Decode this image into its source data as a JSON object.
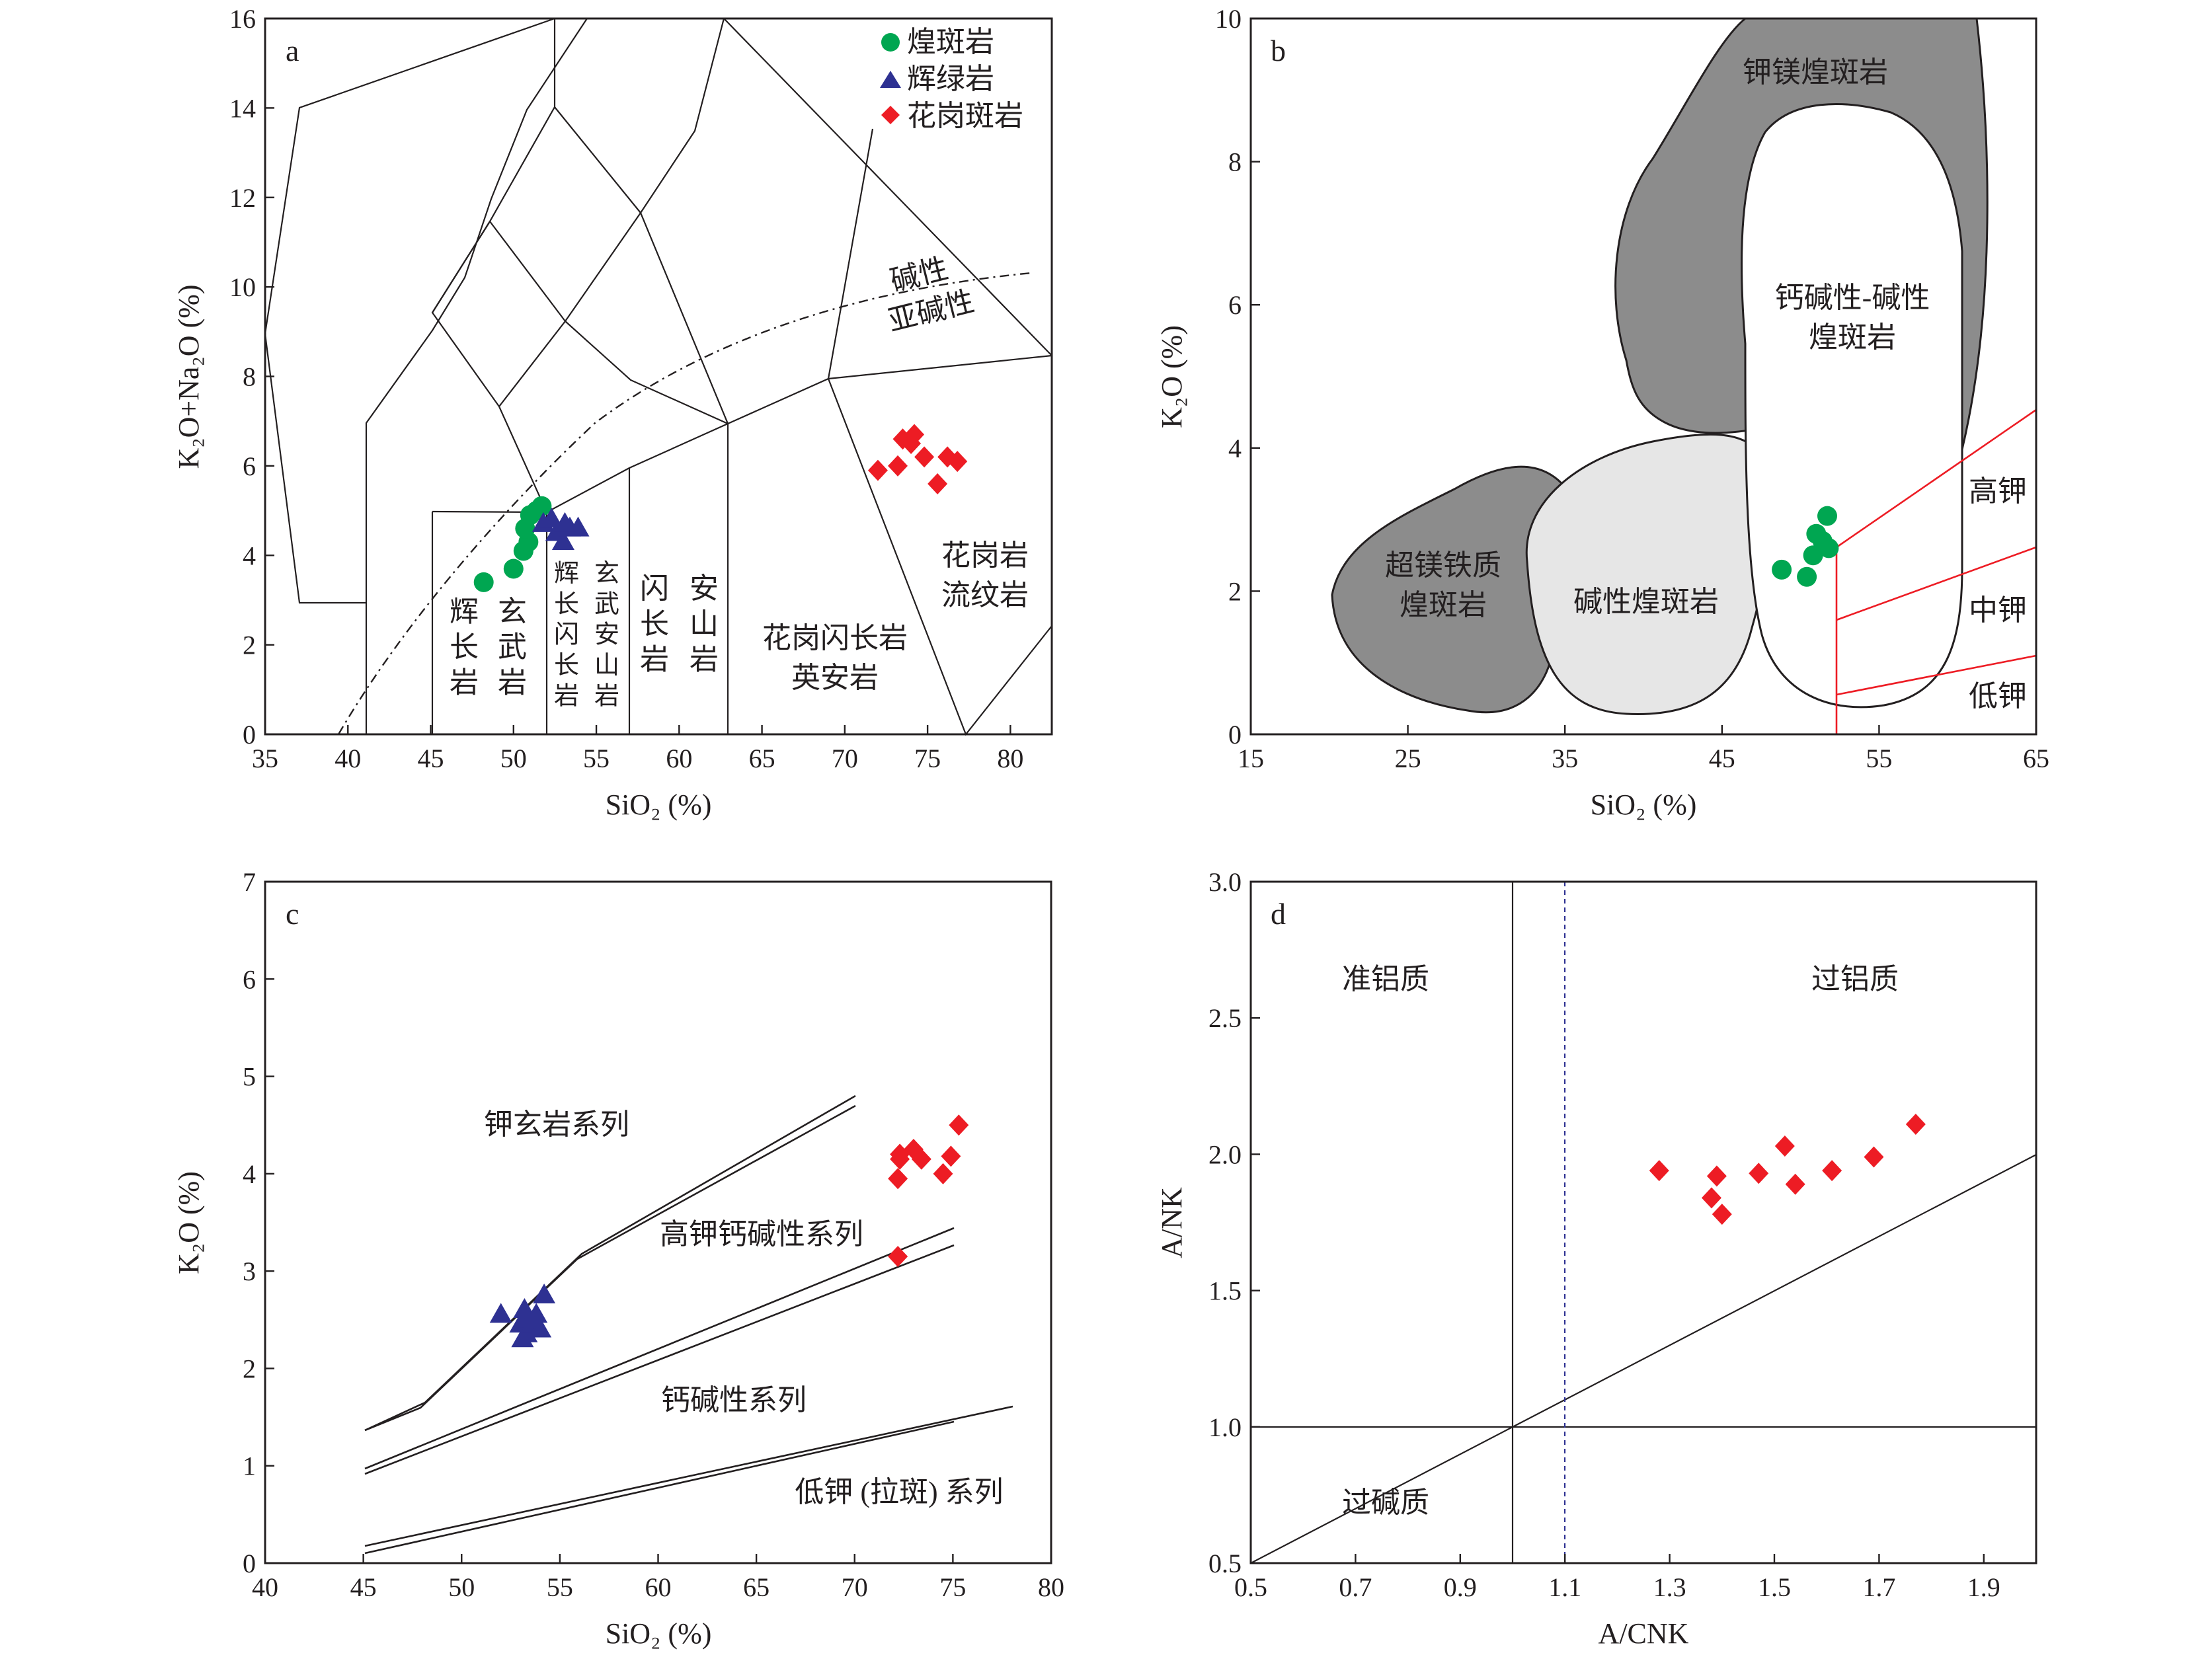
{
  "panels": {
    "a": {
      "label": "a",
      "xlabel": "SiO₂ (%)",
      "ylabel": "K₂O+Na₂O (%)",
      "xticks": [
        "35",
        "40",
        "45",
        "50",
        "55",
        "60",
        "65",
        "70",
        "75",
        "80"
      ],
      "yticks": [
        "0",
        "2",
        "4",
        "6",
        "8",
        "10",
        "12",
        "14",
        "16"
      ],
      "legend": [
        "煌斑岩",
        "辉绿岩",
        "花岗斑岩"
      ],
      "zones": {
        "gabbro": "辉长岩",
        "basalt": "玄武岩",
        "gabbrodiorite": "辉长闪长岩",
        "basaltic_andesite": "玄武安山岩",
        "diorite": "闪长岩",
        "andesite": "安山岩",
        "granodiorite": "花岗闪长岩",
        "dacite": "英安岩",
        "granite": "花岗岩",
        "rhyolite": "流纹岩",
        "alkaline": "碱性",
        "subalkaline": "亚碱性"
      }
    },
    "b": {
      "label": "b",
      "xlabel": "SiO₂ (%)",
      "ylabel": "K₂O (%)",
      "xticks": [
        "15",
        "25",
        "35",
        "45",
        "55",
        "65"
      ],
      "yticks": [
        "0",
        "2",
        "4",
        "6",
        "8",
        "10"
      ],
      "zones": {
        "kmg": "钾镁煌斑岩",
        "calc_alk_1": "钙碱性-碱性",
        "calc_alk_2": "煌斑岩",
        "ultramafic_1": "超镁铁质",
        "ultramafic_2": "煌斑岩",
        "alkaline": "碱性煌斑岩",
        "highk": "高钾",
        "midk": "中钾",
        "lowk": "低钾"
      }
    },
    "c": {
      "label": "c",
      "xlabel": "SiO₂ (%)",
      "ylabel": "K₂O (%)",
      "xticks": [
        "40",
        "45",
        "50",
        "55",
        "60",
        "65",
        "70",
        "75",
        "80"
      ],
      "yticks": [
        "0",
        "1",
        "2",
        "3",
        "4",
        "5",
        "6",
        "7"
      ],
      "zones": {
        "shoshonite": "钾玄岩系列",
        "highk_calc": "高钾钙碱性系列",
        "calc": "钙碱性系列",
        "lowk": "低钾 (拉斑) 系列"
      }
    },
    "d": {
      "label": "d",
      "xlabel": "A/CNK",
      "ylabel": "A/NK",
      "xticks": [
        "0.5",
        "0.7",
        "0.9",
        "1.1",
        "1.3",
        "1.5",
        "1.7",
        "1.9"
      ],
      "yticks": [
        "0.5",
        "1.0",
        "1.5",
        "2.0",
        "2.5",
        "3.0"
      ],
      "zones": {
        "metaluminous": "准铝质",
        "peraluminous": "过铝质",
        "peralkaline": "过碱质"
      }
    }
  },
  "chart_data": [
    {
      "panel": "a",
      "type": "scatter",
      "title": "",
      "xlabel": "SiO₂ (%)",
      "ylabel": "K₂O+Na₂O (%)",
      "xlim": [
        35,
        82.5
      ],
      "ylim": [
        0,
        16
      ],
      "grid": false,
      "legend_position": "top-right",
      "series": [
        {
          "name": "煌斑岩",
          "marker": "circle",
          "color": "#00a651",
          "points": [
            [
              48.2,
              3.4
            ],
            [
              50.0,
              3.7
            ],
            [
              50.6,
              4.1
            ],
            [
              50.9,
              4.3
            ],
            [
              50.7,
              4.6
            ],
            [
              51.0,
              4.9
            ],
            [
              51.4,
              5.0
            ],
            [
              51.7,
              5.1
            ]
          ]
        },
        {
          "name": "辉绿岩",
          "marker": "triangle",
          "color": "#2e3192",
          "points": [
            [
              51.8,
              4.7
            ],
            [
              52.6,
              4.5
            ],
            [
              53.0,
              4.3
            ],
            [
              53.4,
              4.6
            ],
            [
              53.9,
              4.6
            ],
            [
              52.3,
              4.8
            ],
            [
              53.1,
              4.7
            ]
          ]
        },
        {
          "name": "花岗斑岩",
          "marker": "diamond",
          "color": "#ed1c24",
          "points": [
            [
              72.0,
              5.9
            ],
            [
              73.2,
              6.0
            ],
            [
              73.5,
              6.6
            ],
            [
              74.2,
              6.7
            ],
            [
              74.0,
              6.5
            ],
            [
              74.8,
              6.2
            ],
            [
              75.6,
              5.6
            ],
            [
              76.2,
              6.2
            ],
            [
              76.8,
              6.1
            ]
          ]
        }
      ]
    },
    {
      "panel": "b",
      "type": "scatter",
      "title": "",
      "xlabel": "SiO₂ (%)",
      "ylabel": "K₂O (%)",
      "xlim": [
        15,
        65
      ],
      "ylim": [
        0,
        10
      ],
      "grid": false,
      "series": [
        {
          "name": "煌斑岩",
          "marker": "circle",
          "color": "#00a651",
          "points": [
            [
              48.8,
              2.3
            ],
            [
              50.4,
              2.2
            ],
            [
              50.8,
              2.5
            ],
            [
              51.0,
              2.8
            ],
            [
              51.4,
              2.7
            ],
            [
              51.8,
              2.6
            ],
            [
              51.7,
              3.05
            ]
          ]
        }
      ]
    },
    {
      "panel": "c",
      "type": "scatter",
      "title": "",
      "xlabel": "SiO₂ (%)",
      "ylabel": "K₂O (%)",
      "xlim": [
        40,
        80
      ],
      "ylim": [
        0,
        7
      ],
      "grid": false,
      "series": [
        {
          "name": "辉绿岩",
          "marker": "triangle",
          "color": "#2e3192",
          "points": [
            [
              52.0,
              2.55
            ],
            [
              53.0,
              2.45
            ],
            [
              53.1,
              2.3
            ],
            [
              53.3,
              2.35
            ],
            [
              53.4,
              2.5
            ],
            [
              53.6,
              2.45
            ],
            [
              53.8,
              2.55
            ],
            [
              54.2,
              2.75
            ],
            [
              54.0,
              2.4
            ],
            [
              53.2,
              2.6
            ]
          ]
        },
        {
          "name": "花岗斑岩",
          "marker": "diamond",
          "color": "#ed1c24",
          "points": [
            [
              72.2,
              3.15
            ],
            [
              72.2,
              3.95
            ],
            [
              72.3,
              4.15
            ],
            [
              72.3,
              4.2
            ],
            [
              73.0,
              4.25
            ],
            [
              73.4,
              4.15
            ],
            [
              74.5,
              4.0
            ],
            [
              74.9,
              4.18
            ],
            [
              75.3,
              4.5
            ]
          ]
        }
      ]
    },
    {
      "panel": "d",
      "type": "scatter",
      "title": "",
      "xlabel": "A/CNK",
      "ylabel": "A/NK",
      "xlim": [
        0.5,
        2.0
      ],
      "ylim": [
        0.5,
        3.0
      ],
      "grid": false,
      "series": [
        {
          "name": "花岗斑岩",
          "marker": "diamond",
          "color": "#ed1c24",
          "points": [
            [
              1.28,
              1.94
            ],
            [
              1.38,
              1.84
            ],
            [
              1.39,
              1.92
            ],
            [
              1.4,
              1.78
            ],
            [
              1.47,
              1.93
            ],
            [
              1.52,
              2.03
            ],
            [
              1.54,
              1.89
            ],
            [
              1.61,
              1.94
            ],
            [
              1.69,
              1.99
            ],
            [
              1.77,
              2.11
            ]
          ]
        }
      ]
    }
  ]
}
